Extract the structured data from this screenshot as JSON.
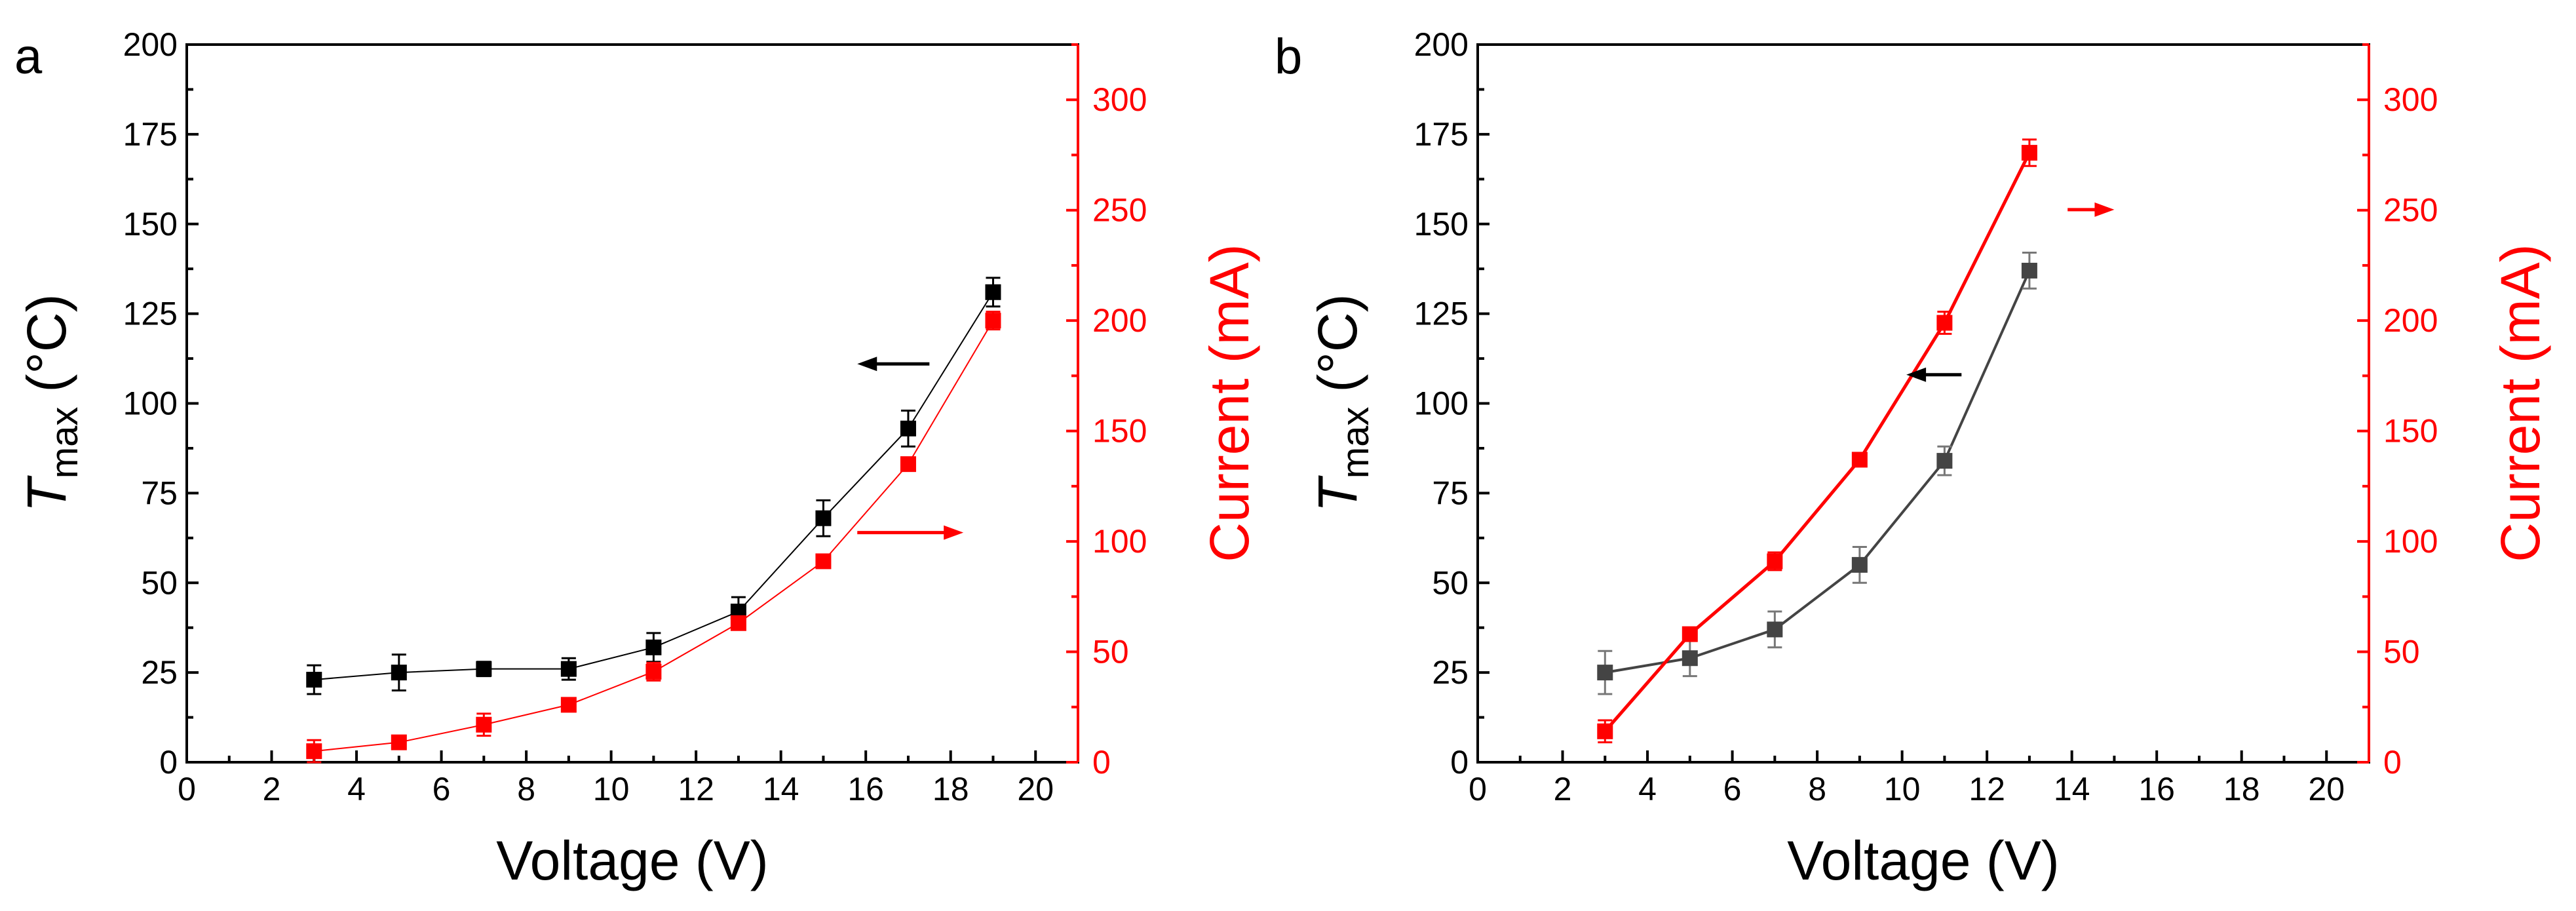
{
  "figure": {
    "panel_a_label": "a",
    "panel_b_label": "b"
  },
  "chart_data": [
    {
      "id": "a",
      "type": "line",
      "panel_label": "a",
      "xlabel": "Voltage (V)",
      "ylabel_left_main": "T",
      "ylabel_left_sub": "max",
      "ylabel_left_unit": "(°C)",
      "ylabel_right": "Current (mA)",
      "xlim": [
        0,
        21
      ],
      "ylim_left": [
        0,
        200
      ],
      "ylim_right": [
        0,
        325
      ],
      "xticks": [
        0,
        2,
        4,
        6,
        8,
        10,
        12,
        14,
        16,
        18,
        20
      ],
      "yticks_left": [
        0,
        25,
        50,
        75,
        100,
        125,
        150,
        175,
        200
      ],
      "yticks_right": [
        0,
        50,
        100,
        150,
        200,
        250,
        300
      ],
      "series": [
        {
          "name": "T_max",
          "axis": "left",
          "color": "#000000",
          "line_width": 2,
          "x": [
            3,
            5,
            7,
            9,
            11,
            13,
            15,
            17,
            19
          ],
          "y": [
            23,
            25,
            26,
            26,
            32,
            42,
            68,
            93,
            131
          ],
          "err": [
            4,
            5,
            2,
            3,
            4,
            4,
            5,
            5,
            4
          ]
        },
        {
          "name": "Current",
          "axis": "right",
          "color": "#ff0000",
          "line_width": 2,
          "x": [
            3,
            5,
            7,
            9,
            11,
            13,
            15,
            17,
            19
          ],
          "y": [
            5,
            9,
            17,
            26,
            41,
            63,
            91,
            135,
            200
          ],
          "err": [
            5,
            2,
            5,
            2,
            4,
            3,
            2,
            3,
            4
          ]
        }
      ],
      "arrows": [
        {
          "color": "#000000",
          "direction": "left",
          "x_from": 17.5,
          "x_to": 15.8,
          "y": 111,
          "axis": "left"
        },
        {
          "color": "#ff0000",
          "direction": "right",
          "x_from": 15.8,
          "x_to": 18.3,
          "y": 64,
          "axis": "left"
        }
      ]
    },
    {
      "id": "b",
      "type": "line",
      "panel_label": "b",
      "xlabel": "Voltage (V)",
      "ylabel_left_main": "T",
      "ylabel_left_sub": "max",
      "ylabel_left_unit": "(°C)",
      "ylabel_right": "Current (mA)",
      "xlim": [
        0,
        21
      ],
      "ylim_left": [
        0,
        200
      ],
      "ylim_right": [
        0,
        325
      ],
      "xticks": [
        0,
        2,
        4,
        6,
        8,
        10,
        12,
        14,
        16,
        18,
        20
      ],
      "yticks_left": [
        0,
        25,
        50,
        75,
        100,
        125,
        150,
        175,
        200
      ],
      "yticks_right": [
        0,
        50,
        100,
        150,
        200,
        250,
        300
      ],
      "series": [
        {
          "name": "T_max",
          "axis": "left",
          "color": "#444444",
          "err_color": "#777777",
          "line_width": 4,
          "x": [
            3,
            5,
            7,
            9,
            11,
            13
          ],
          "y": [
            25,
            29,
            37,
            55,
            84,
            137
          ],
          "err": [
            6,
            5,
            5,
            5,
            4,
            5
          ]
        },
        {
          "name": "Current",
          "axis": "right",
          "color": "#ff0000",
          "line_width": 5,
          "x": [
            3,
            5,
            7,
            9,
            11,
            13
          ],
          "y": [
            14,
            58,
            91,
            137,
            199,
            276
          ],
          "err": [
            5,
            2,
            4,
            3,
            5,
            6
          ]
        }
      ],
      "arrows": [
        {
          "color": "#000000",
          "direction": "left",
          "x_from": 11.4,
          "x_to": 10.1,
          "y": 108,
          "axis": "left"
        },
        {
          "color": "#ff0000",
          "direction": "right",
          "x_from": 13.9,
          "x_to": 15.0,
          "y": 154,
          "axis": "left"
        }
      ]
    }
  ]
}
